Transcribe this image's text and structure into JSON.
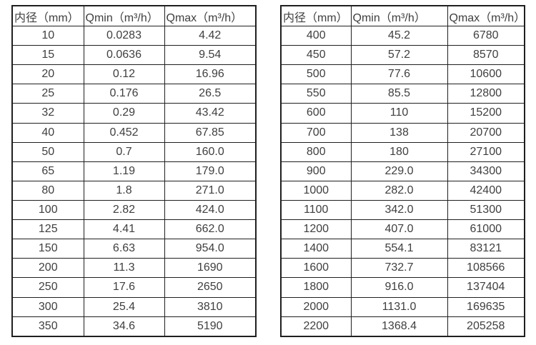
{
  "page": {
    "background_color": "#ffffff",
    "text_color": "#3f3f3f",
    "border_color": "#1f1f1f"
  },
  "tables": [
    {
      "id": "flow-table-small-diameters",
      "headers": [
        "内径（mm）",
        "Qmin（m³/h）",
        "Qmax（m³/h）"
      ],
      "rows": [
        [
          "10",
          "0.0283",
          "4.42"
        ],
        [
          "15",
          "0.0636",
          "9.54"
        ],
        [
          "20",
          "0.12",
          "16.96"
        ],
        [
          "25",
          "0.176",
          "26.5"
        ],
        [
          "32",
          "0.29",
          "43.42"
        ],
        [
          "40",
          "0.452",
          "67.85"
        ],
        [
          "50",
          "0.7",
          "160.0"
        ],
        [
          "65",
          "1.19",
          "179.0"
        ],
        [
          "80",
          "1.8",
          "271.0"
        ],
        [
          "100",
          "2.82",
          "424.0"
        ],
        [
          "125",
          "4.41",
          "662.0"
        ],
        [
          "150",
          "6.63",
          "954.0"
        ],
        [
          "200",
          "11.3",
          "1690"
        ],
        [
          "250",
          "17.6",
          "2650"
        ],
        [
          "300",
          "25.4",
          "3810"
        ],
        [
          "350",
          "34.6",
          "5190"
        ]
      ]
    },
    {
      "id": "flow-table-large-diameters",
      "headers": [
        "内径（mm）",
        "Qmin（m³/h）",
        "Qmax（m³/h）"
      ],
      "rows": [
        [
          "400",
          "45.2",
          "6780"
        ],
        [
          "450",
          "57.2",
          "8570"
        ],
        [
          "500",
          "77.6",
          "10600"
        ],
        [
          "550",
          "85.5",
          "12800"
        ],
        [
          "600",
          "110",
          "15200"
        ],
        [
          "700",
          "138",
          "20700"
        ],
        [
          "800",
          "180",
          "27100"
        ],
        [
          "900",
          "229.0",
          "34300"
        ],
        [
          "1000",
          "282.0",
          "42400"
        ],
        [
          "1100",
          "342.0",
          "51300"
        ],
        [
          "1200",
          "407.0",
          "61000"
        ],
        [
          "1400",
          "554.1",
          "83121"
        ],
        [
          "1600",
          "732.7",
          "108566"
        ],
        [
          "1800",
          "916.0",
          "137404"
        ],
        [
          "2000",
          "1131.0",
          "169635"
        ],
        [
          "2200",
          "1368.4",
          "205258"
        ]
      ]
    }
  ]
}
